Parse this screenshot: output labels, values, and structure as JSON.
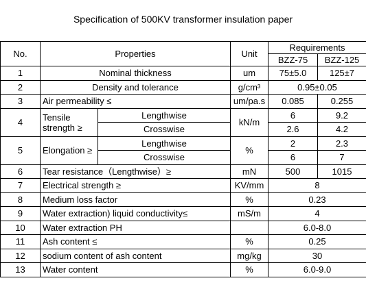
{
  "title": "Specification of 500KV transformer insulation paper",
  "table": {
    "header": {
      "no": "No.",
      "properties": "Properties",
      "unit": "Unit",
      "requirements": "Requirements",
      "grades": [
        "BZZ-75",
        "BZZ-125"
      ]
    },
    "rows": [
      {
        "no": "1",
        "property": "Nominal thickness",
        "unit": "um",
        "values": [
          "75±5.0",
          "125±7"
        ]
      },
      {
        "no": "2",
        "property": "Density and  tolerance",
        "unit": "g/cm³",
        "values": [
          "0.95±0.05"
        ]
      },
      {
        "no": "3",
        "property": "Air permeability ≤",
        "unit": "um/pa.s",
        "values": [
          "0.085",
          "0.255"
        ]
      },
      {
        "no": "4",
        "property": "Tensile strength ≥",
        "unit": "kN/m",
        "sub": [
          {
            "direction": "Lengthwise",
            "values": [
              "6",
              "9.2"
            ]
          },
          {
            "direction": "Crosswise",
            "values": [
              "2.6",
              "4.2"
            ]
          }
        ]
      },
      {
        "no": "5",
        "property": "Elongation ≥",
        "unit": "%",
        "sub": [
          {
            "direction": "Lengthwise",
            "values": [
              "2",
              "2.3"
            ]
          },
          {
            "direction": "Crosswise",
            "values": [
              "6",
              "7"
            ]
          }
        ]
      },
      {
        "no": "6",
        "property": "Tear resistance（Lengthwise）≥",
        "unit": "mN",
        "values": [
          "500",
          "1015"
        ]
      },
      {
        "no": "7",
        "property": "Electrical strength ≥",
        "unit": "KV/mm",
        "values": [
          "8"
        ]
      },
      {
        "no": "8",
        "property": "Medium loss factor",
        "unit": "%",
        "values": [
          "0.23"
        ]
      },
      {
        "no": "9",
        "property": "Water extraction) liquid conductivity≤",
        "unit": "mS/m",
        "values": [
          "4"
        ]
      },
      {
        "no": "10",
        "property": "Water extraction PH",
        "unit": "",
        "values": [
          "6.0-8.0"
        ]
      },
      {
        "no": "11",
        "property": "Ash content ≤",
        "unit": "%",
        "values": [
          "0.25"
        ]
      },
      {
        "no": "12",
        "property": "sodium content of ash content",
        "unit": "mg/kg",
        "values": [
          "30"
        ]
      },
      {
        "no": "13",
        "property": "Water content",
        "unit": "%",
        "values": [
          "6.0-9.0"
        ]
      }
    ]
  }
}
